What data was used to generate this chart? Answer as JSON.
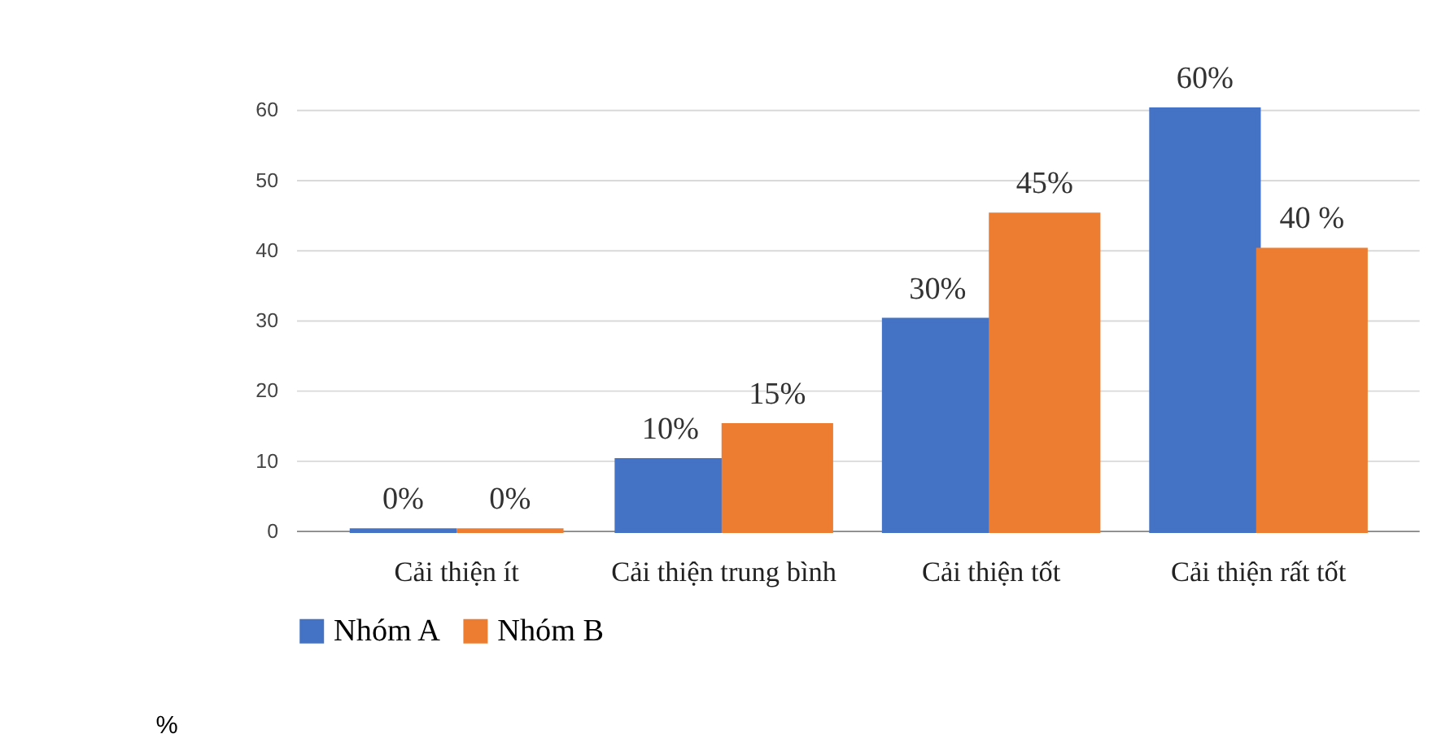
{
  "chart_data": {
    "type": "bar",
    "categories": [
      "Cải thiện ít",
      "Cải thiện trung bình",
      "Cải thiện tốt",
      "Cải thiện rất tốt"
    ],
    "series": [
      {
        "name": "Nhóm A",
        "color": "#4472c4",
        "values": [
          0,
          10,
          30,
          60
        ],
        "value_labels": [
          "0%",
          "10%",
          "30%",
          "60%"
        ]
      },
      {
        "name": "Nhóm B",
        "color": "#ed7d31",
        "values": [
          0,
          15,
          45,
          40
        ],
        "value_labels": [
          "0%",
          "15%",
          "45%",
          "40 %"
        ]
      }
    ],
    "ylim": [
      0,
      60
    ],
    "yticks": [
      0,
      10,
      20,
      30,
      40,
      50,
      60
    ],
    "grid": "y",
    "legend": "bottom",
    "annotations": [
      "%"
    ]
  }
}
